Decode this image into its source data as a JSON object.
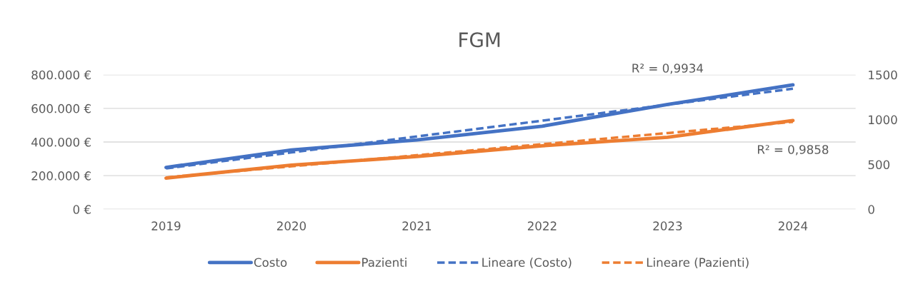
{
  "chart_data": {
    "type": "line",
    "title": "FGM",
    "categories": [
      "2019",
      "2020",
      "2021",
      "2022",
      "2023",
      "2024"
    ],
    "series": [
      {
        "name": "Costo",
        "color": "#4472c4",
        "values": [
          249000,
          353000,
          412000,
          494000,
          623000,
          740000
        ]
      },
      {
        "name": "Pazienti",
        "color": "#ed7d31",
        "axis": "y2",
        "values": [
          348,
          493,
          589,
          708,
          803,
          990
        ]
      },
      {
        "name": "Lineare (Costo)",
        "color": "#4472c4",
        "line_style": "dashed",
        "values": [
          243000,
          338000,
          433000,
          527000,
          622000,
          717000
        ]
      },
      {
        "name": "Lineare (Pazienti)",
        "color": "#ed7d31",
        "line_style": "dashed",
        "axis": "y2",
        "values": [
          355,
          479,
          603,
          726,
          850,
          974
        ]
      }
    ],
    "ylim": [
      0,
      800000
    ],
    "yticks": [
      {
        "value": 0,
        "label": "0 €"
      },
      {
        "value": 200000,
        "label": "200.000 €"
      },
      {
        "value": 400000,
        "label": "400.000 €"
      },
      {
        "value": 600000,
        "label": "600.000 €"
      },
      {
        "value": 800000,
        "label": "800.000 €"
      }
    ],
    "y2lim": [
      0,
      1500
    ],
    "y2ticks": [
      0,
      500,
      1000,
      1500
    ],
    "annotations": [
      "R² = 0,9934",
      "R² = 0,9858"
    ],
    "grid": "y",
    "legend": "bottom",
    "marker": "none",
    "line_style": "solid"
  }
}
